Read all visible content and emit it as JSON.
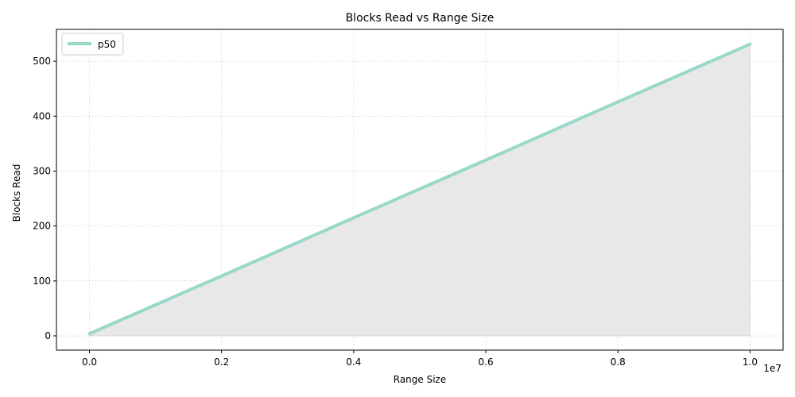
{
  "chart_data": {
    "type": "line",
    "title": "Blocks Read vs Range Size",
    "xlabel": "Range Size",
    "ylabel": "Blocks Read",
    "x_offset_label": "1e7",
    "x_scale": 10000000,
    "xlim": [
      -500000,
      10500000
    ],
    "ylim": [
      -26,
      558
    ],
    "x_ticks": [
      0,
      2000000,
      4000000,
      6000000,
      8000000,
      10000000
    ],
    "x_tick_labels": [
      "0.0",
      "0.2",
      "0.4",
      "0.6",
      "0.8",
      "1.0"
    ],
    "y_ticks": [
      0,
      100,
      200,
      300,
      400,
      500
    ],
    "y_tick_labels": [
      "0",
      "100",
      "200",
      "300",
      "400",
      "500"
    ],
    "grid": true,
    "legend_position": "top-left",
    "series": [
      {
        "name": "p50",
        "color": "#99d8c9",
        "fill_color": "#e8e8e8",
        "x": [
          0,
          2000000,
          4000000,
          6000000,
          8000000,
          10000000
        ],
        "y": [
          4,
          109,
          215,
          320,
          426,
          531
        ]
      }
    ]
  }
}
